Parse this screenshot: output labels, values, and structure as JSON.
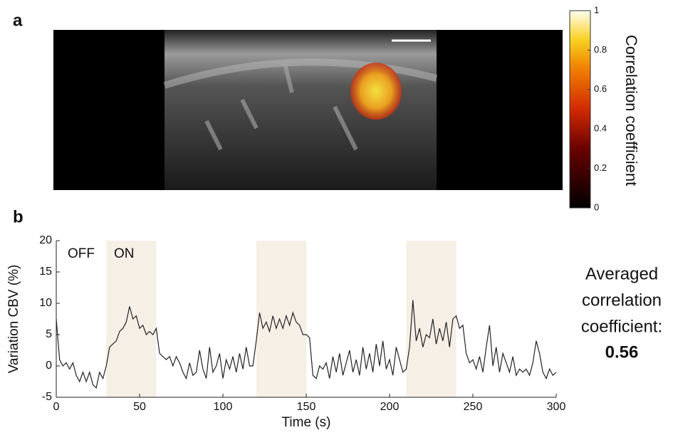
{
  "panel_labels": [
    "a",
    "b"
  ],
  "image": {
    "colorbar_label": "Correlation coefficient",
    "colorbar_ticks": [
      0,
      0.2,
      0.4,
      0.6,
      0.8,
      1
    ]
  },
  "side_note": {
    "lines": [
      "Averaged",
      "correlation",
      "coefficient:"
    ],
    "value": "0.56"
  },
  "chart_data": {
    "type": "line",
    "xlabel": "Time (s)",
    "ylabel": "Variation CBV (%)",
    "annotations": [
      "OFF",
      "ON"
    ],
    "stimulus_periods": [
      [
        30,
        60
      ],
      [
        120,
        150
      ],
      [
        210,
        240
      ]
    ],
    "xlim": [
      0,
      300
    ],
    "ylim": [
      -5,
      20
    ],
    "xticks": [
      0,
      50,
      100,
      150,
      200,
      250,
      300
    ],
    "yticks": [
      -5,
      0,
      5,
      10,
      15,
      20
    ],
    "x": [
      0,
      2,
      4,
      6,
      8,
      10,
      12,
      14,
      16,
      18,
      20,
      22,
      24,
      26,
      28,
      30,
      32,
      34,
      36,
      38,
      40,
      42,
      44,
      46,
      48,
      50,
      52,
      54,
      56,
      58,
      60,
      62,
      64,
      66,
      68,
      70,
      72,
      74,
      76,
      78,
      80,
      82,
      84,
      86,
      88,
      90,
      92,
      94,
      96,
      98,
      100,
      102,
      104,
      106,
      108,
      110,
      112,
      114,
      116,
      118,
      120,
      122,
      124,
      126,
      128,
      130,
      132,
      134,
      136,
      138,
      140,
      142,
      144,
      146,
      148,
      150,
      152,
      154,
      156,
      158,
      160,
      162,
      164,
      166,
      168,
      170,
      172,
      174,
      176,
      178,
      180,
      182,
      184,
      186,
      188,
      190,
      192,
      194,
      196,
      198,
      200,
      202,
      204,
      206,
      208,
      210,
      212,
      214,
      216,
      218,
      220,
      222,
      224,
      226,
      228,
      230,
      232,
      234,
      236,
      238,
      240,
      242,
      244,
      246,
      248,
      250,
      252,
      254,
      256,
      258,
      260,
      262,
      264,
      266,
      268,
      270,
      272,
      274,
      276,
      278,
      280,
      282,
      284,
      286,
      288,
      290,
      292,
      294,
      296,
      298,
      300
    ],
    "series": [
      {
        "color": "#222222",
        "values": [
          7.5,
          1,
          0,
          0.5,
          -0.5,
          0.5,
          -1.5,
          -2.5,
          -1,
          -2.5,
          -1,
          -3,
          -3.5,
          -1,
          -2,
          0,
          3,
          3.5,
          4,
          5.5,
          6,
          7,
          9.5,
          7.5,
          8,
          6,
          6.5,
          5,
          5.5,
          5,
          6,
          2,
          1.5,
          1,
          1.5,
          0,
          1.5,
          0.5,
          -1,
          -2,
          0.5,
          -1.5,
          -1,
          2.5,
          -0.5,
          -2,
          3,
          -1,
          0,
          2,
          -2,
          1,
          -0.5,
          1.5,
          -1,
          2,
          -0.5,
          3,
          0,
          0,
          4,
          8.5,
          6,
          7,
          5.5,
          8,
          6,
          7.5,
          6,
          8,
          6.5,
          8.5,
          7,
          6.5,
          5,
          5,
          4.5,
          -1.5,
          -2,
          0,
          -0.5,
          0.5,
          -2,
          1.5,
          -1,
          2,
          -1.5,
          0.5,
          2.5,
          -1,
          1,
          -1.5,
          3,
          -0.5,
          2,
          -1,
          3.5,
          0,
          4,
          -0.5,
          1,
          -1.5,
          3,
          1,
          -1,
          -0.5,
          3,
          10.5,
          4,
          6,
          3,
          5,
          4.5,
          7.5,
          3.5,
          6,
          4,
          7,
          3,
          7.5,
          8,
          6,
          6.5,
          2,
          0.5,
          1,
          -0.5,
          1.5,
          -1,
          3,
          6.5,
          0,
          3,
          -1,
          2,
          0.5,
          -1,
          1.5,
          -1.5,
          -0.5,
          -1,
          -0.5,
          -1.5,
          0.5,
          4,
          2,
          -1,
          -2,
          -0.5,
          -1.5,
          -1
        ]
      }
    ]
  }
}
